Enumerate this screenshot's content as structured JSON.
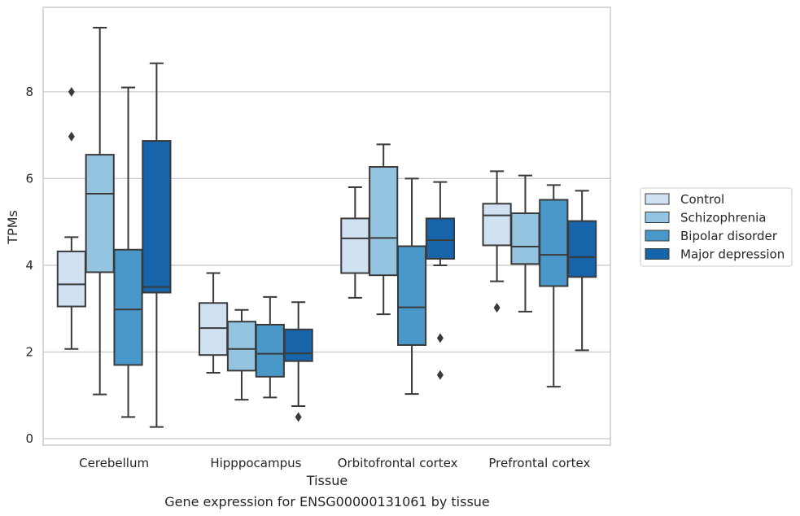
{
  "chart_data": {
    "type": "box",
    "caption": "Gene expression for ENSG00000131061 by tissue",
    "xlabel": "Tissue",
    "ylabel": "TPMs",
    "ylim": [
      -0.15,
      9.95
    ],
    "yticks": [
      0,
      2,
      4,
      6,
      8
    ],
    "grid": "horizontal",
    "legend_position": "right",
    "categories": [
      "Cerebellum",
      "Hipppocampus",
      "Orbitofrontal cortex",
      "Prefrontal cortex"
    ],
    "series": [
      {
        "name": "Control",
        "color": "#d0e1f2",
        "boxes": [
          {
            "whisker_low": 2.07,
            "q1": 3.05,
            "median": 3.56,
            "q3": 4.32,
            "whisker_high": 4.65,
            "outliers": [
              6.97,
              8.0
            ]
          },
          {
            "whisker_low": 1.52,
            "q1": 1.93,
            "median": 2.55,
            "q3": 3.13,
            "whisker_high": 3.82,
            "outliers": []
          },
          {
            "whisker_low": 3.25,
            "q1": 3.82,
            "median": 4.62,
            "q3": 5.08,
            "whisker_high": 5.8,
            "outliers": []
          },
          {
            "whisker_low": 3.63,
            "q1": 4.46,
            "median": 5.15,
            "q3": 5.42,
            "whisker_high": 6.17,
            "outliers": [
              3.02
            ]
          }
        ]
      },
      {
        "name": "Schizophrenia",
        "color": "#94c4df",
        "boxes": [
          {
            "whisker_low": 1.02,
            "q1": 3.84,
            "median": 5.65,
            "q3": 6.55,
            "whisker_high": 9.48,
            "outliers": []
          },
          {
            "whisker_low": 0.9,
            "q1": 1.57,
            "median": 2.07,
            "q3": 2.7,
            "whisker_high": 2.97,
            "outliers": []
          },
          {
            "whisker_low": 2.87,
            "q1": 3.77,
            "median": 4.63,
            "q3": 6.27,
            "whisker_high": 6.79,
            "outliers": []
          },
          {
            "whisker_low": 2.93,
            "q1": 4.03,
            "median": 4.43,
            "q3": 5.2,
            "whisker_high": 6.07,
            "outliers": []
          }
        ]
      },
      {
        "name": "Bipolar disorder",
        "color": "#4a98c9",
        "boxes": [
          {
            "whisker_low": 0.5,
            "q1": 1.7,
            "median": 2.98,
            "q3": 4.36,
            "whisker_high": 8.1,
            "outliers": []
          },
          {
            "whisker_low": 0.95,
            "q1": 1.43,
            "median": 1.96,
            "q3": 2.63,
            "whisker_high": 3.27,
            "outliers": []
          },
          {
            "whisker_low": 1.03,
            "q1": 2.16,
            "median": 3.03,
            "q3": 4.44,
            "whisker_high": 6.0,
            "outliers": []
          },
          {
            "whisker_low": 1.2,
            "q1": 3.52,
            "median": 4.24,
            "q3": 5.51,
            "whisker_high": 5.85,
            "outliers": []
          }
        ]
      },
      {
        "name": "Major depression",
        "color": "#1764ab",
        "boxes": [
          {
            "whisker_low": 0.27,
            "q1": 3.37,
            "median": 3.5,
            "q3": 6.87,
            "whisker_high": 8.66,
            "outliers": []
          },
          {
            "whisker_low": 0.75,
            "q1": 1.79,
            "median": 1.97,
            "q3": 2.52,
            "whisker_high": 3.15,
            "outliers": [
              0.5
            ]
          },
          {
            "whisker_low": 4.0,
            "q1": 4.15,
            "median": 4.58,
            "q3": 5.08,
            "whisker_high": 5.92,
            "outliers": [
              1.47,
              2.32
            ]
          },
          {
            "whisker_low": 2.04,
            "q1": 3.73,
            "median": 4.19,
            "q3": 5.02,
            "whisker_high": 5.72,
            "outliers": []
          }
        ]
      }
    ]
  }
}
